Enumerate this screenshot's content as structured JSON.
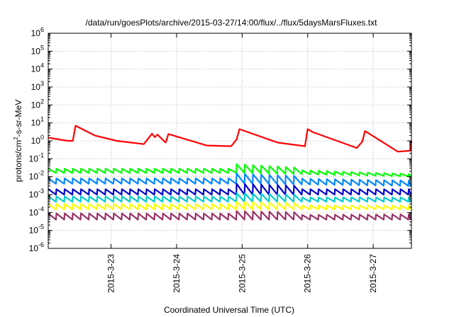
{
  "chart_data": {
    "type": "line",
    "title": "/data/run/goesPlots/archive/2015-03-27/14:00/flux/../flux/5daysMarsFluxes.txt",
    "xlabel": "Coordinated Universal Time (UTC)",
    "ylabel": {
      "pre": "protons/cm",
      "sup": "2",
      "post": "-s-sr-MeV"
    },
    "y_scale": "log",
    "ylim": [
      1e-06,
      1000000.0
    ],
    "y_ticks": [
      {
        "base": "10",
        "exp": "-6",
        "value": 1e-06
      },
      {
        "base": "10",
        "exp": "-5",
        "value": 1e-05
      },
      {
        "base": "10",
        "exp": "-4",
        "value": 0.0001
      },
      {
        "base": "10",
        "exp": "-3",
        "value": 0.001
      },
      {
        "base": "10",
        "exp": "-2",
        "value": 0.01
      },
      {
        "base": "10",
        "exp": "-1",
        "value": 0.1
      },
      {
        "base": "10",
        "exp": "0",
        "value": 1
      },
      {
        "base": "10",
        "exp": "1",
        "value": 10
      },
      {
        "base": "10",
        "exp": "2",
        "value": 100
      },
      {
        "base": "10",
        "exp": "3",
        "value": 1000
      },
      {
        "base": "10",
        "exp": "4",
        "value": 10000
      },
      {
        "base": "10",
        "exp": "5",
        "value": 100000
      },
      {
        "base": "10",
        "exp": "6",
        "value": 1000000
      }
    ],
    "xlim": [
      "2015-03-22 01:00",
      "2015-03-27 14:00"
    ],
    "x_ticks": [
      "2015-3-23",
      "2015-3-24",
      "2015-3-25",
      "2015-3-26",
      "2015-3-27"
    ],
    "grid": true,
    "series": [
      {
        "color": "#ff0000",
        "x": [
          "2015-03-22 01:00",
          "2015-03-22 08:00",
          "2015-03-22 10:00",
          "2015-03-22 11:00",
          "2015-03-22 18:00",
          "2015-03-23 02:00",
          "2015-03-23 12:00",
          "2015-03-23 15:00",
          "2015-03-23 16:00",
          "2015-03-23 17:00",
          "2015-03-23 20:00",
          "2015-03-23 21:00",
          "2015-03-24 11:00",
          "2015-03-24 20:00",
          "2015-03-24 22:00",
          "2015-03-24 23:00",
          "2015-03-25 13:00",
          "2015-03-25 23:00",
          "2015-03-26 00:00",
          "2015-03-26 02:00",
          "2015-03-26 18:00",
          "2015-03-26 20:00",
          "2015-03-26 21:00",
          "2015-03-27 09:00",
          "2015-03-27 13:30",
          "2015-03-27 14:00"
        ],
        "values": [
          1.5,
          1.0,
          1.0,
          7.0,
          2.0,
          1.0,
          0.65,
          2.5,
          1.6,
          2.2,
          0.8,
          2.4,
          0.55,
          0.5,
          1.2,
          4.5,
          0.8,
          0.5,
          4.5,
          3.0,
          0.4,
          0.9,
          3.5,
          0.25,
          0.28,
          1.0
        ]
      },
      {
        "color": "#00ff00",
        "pattern": "sawtooth",
        "period_hours": 3,
        "level_jump_date": "2015-03-24 22:00",
        "values": [
          0.028,
          0.016,
          0.05,
          0.03,
          0.014,
          0.01
        ]
      },
      {
        "color": "#0088ff",
        "pattern": "sawtooth",
        "period_hours": 3,
        "values": [
          0.008,
          0.004,
          0.015,
          0.009,
          0.006,
          0.003
        ]
      },
      {
        "color": "#0000cc",
        "pattern": "sawtooth",
        "period_hours": 3,
        "values": [
          0.002,
          0.001,
          0.004,
          0.002,
          0.002,
          0.001
        ]
      },
      {
        "color": "#00cccc",
        "pattern": "sawtooth",
        "period_hours": 3,
        "values": [
          0.0008,
          0.0004,
          0.0012,
          0.0007,
          0.0007,
          0.0004
        ]
      },
      {
        "color": "#ffff00",
        "pattern": "sawtooth",
        "period_hours": 3,
        "values": [
          0.0003,
          0.00015,
          0.0004,
          0.00025,
          0.00025,
          0.00015
        ]
      },
      {
        "color": "#993366",
        "pattern": "sawtooth",
        "period_hours": 3,
        "values": [
          9e-05,
          4e-05,
          0.00012,
          7e-05,
          8e-05,
          4e-05
        ]
      }
    ]
  }
}
